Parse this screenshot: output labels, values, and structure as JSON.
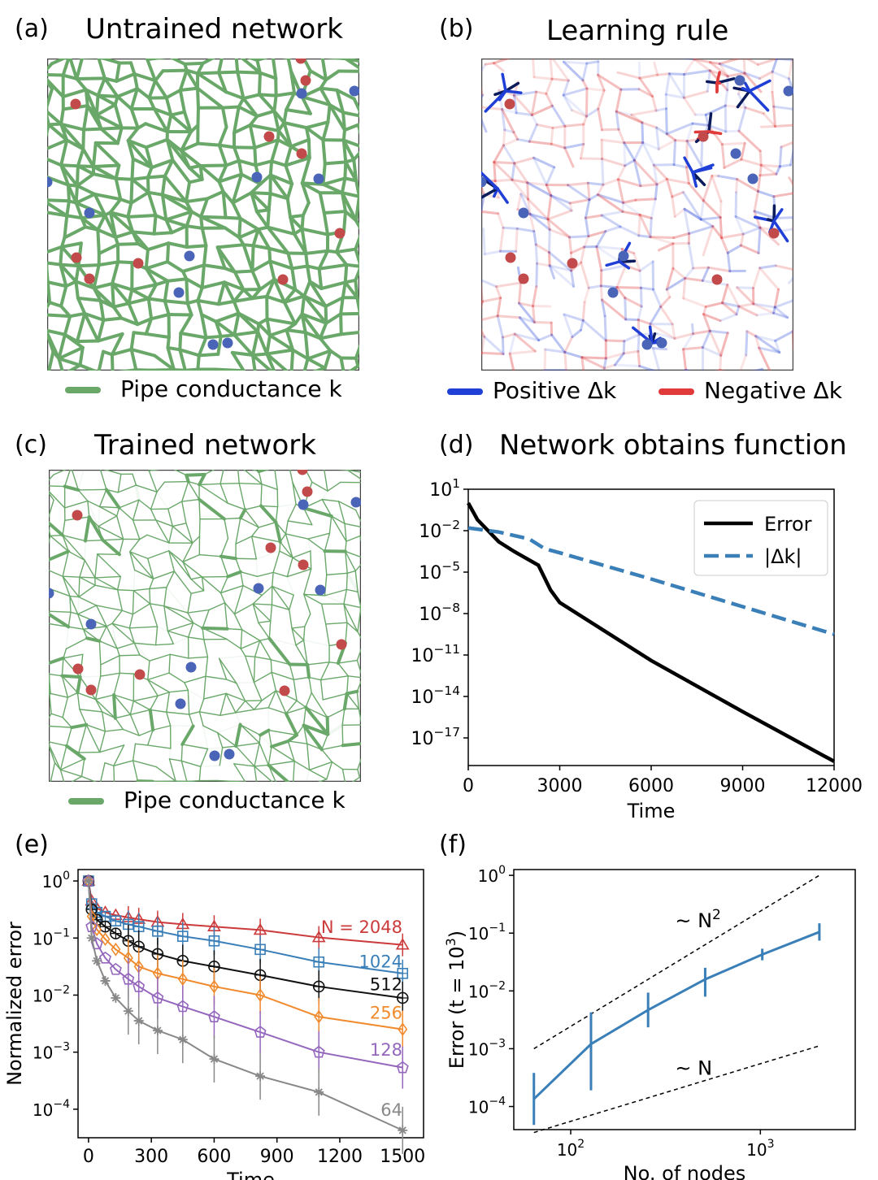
{
  "panels": {
    "a": {
      "label": "(a)",
      "title": "Untrained network",
      "legend": "Pipe conductance k"
    },
    "b": {
      "label": "(b)",
      "title": "Learning rule",
      "legend_pos": "Positive Δk",
      "legend_neg": "Negative Δk"
    },
    "c": {
      "label": "(c)",
      "title": "Trained network",
      "legend": "Pipe conductance k"
    },
    "d": {
      "label": "(d)",
      "title": "Network obtains function"
    },
    "e": {
      "label": "(e)"
    },
    "f": {
      "label": "(f)"
    }
  },
  "colors": {
    "network_green": "#6aa86a",
    "node_red": "#c24a4a",
    "node_blue": "#4a64b8",
    "pos": "#1f3fd6",
    "neg": "#e03a3a",
    "steelblue": "#3a7fb8"
  },
  "chart_data": [
    {
      "id": "d",
      "type": "line",
      "xlabel": "Time",
      "xticks": [
        "0",
        "3000",
        "6000",
        "9000",
        "12000"
      ],
      "yticks": [
        "10^1",
        "10^-2",
        "10^-5",
        "10^-8",
        "10^-11",
        "10^-14",
        "10^-17"
      ],
      "xlim": [
        0,
        12000
      ],
      "ylim_log10": [
        -19,
        1
      ],
      "yscale": "log",
      "legend_position": "top-right",
      "series": [
        {
          "name": "Error",
          "color": "#000000",
          "style": "solid",
          "x": [
            0,
            300,
            1000,
            1500,
            2300,
            2700,
            3000,
            6000,
            9000,
            12000
          ],
          "log10_y": [
            0.0,
            -1.2,
            -2.8,
            -3.5,
            -4.5,
            -6.3,
            -7.2,
            -11.4,
            -15.1,
            -18.7
          ]
        },
        {
          "name": "|Δk|",
          "color": "#3a7fb8",
          "style": "dashed",
          "x": [
            0,
            1000,
            2000,
            2500,
            3000,
            6000,
            9000,
            12000
          ],
          "log10_y": [
            -1.8,
            -2.1,
            -2.6,
            -3.3,
            -3.6,
            -5.5,
            -7.5,
            -9.5
          ]
        }
      ]
    },
    {
      "id": "e",
      "type": "line",
      "xlabel": "Time",
      "ylabel": "Normalized error",
      "xticks": [
        "0",
        "300",
        "600",
        "900",
        "1200",
        "1500"
      ],
      "yticks": [
        "10^0",
        "10^-1",
        "10^-2",
        "10^-3",
        "10^-4"
      ],
      "xlim": [
        -50,
        1600
      ],
      "ylim_log10": [
        -4.5,
        0.2
      ],
      "yscale": "log",
      "x": [
        0,
        15,
        40,
        80,
        130,
        190,
        240,
        330,
        450,
        600,
        820,
        1100,
        1500
      ],
      "series": [
        {
          "name": "N = 2048",
          "label": "N = 2048",
          "color": "#cc3b3b",
          "marker": "triangle",
          "log10_y": [
            0,
            -0.35,
            -0.48,
            -0.55,
            -0.6,
            -0.64,
            -0.67,
            -0.72,
            -0.76,
            -0.8,
            -0.86,
            -0.99,
            -1.12
          ]
        },
        {
          "name": "1024",
          "label": "1024",
          "color": "#3a7fb8",
          "marker": "boxplus",
          "log10_y": [
            0,
            -0.4,
            -0.55,
            -0.62,
            -0.7,
            -0.76,
            -0.8,
            -0.88,
            -0.97,
            -1.05,
            -1.2,
            -1.42,
            -1.62
          ]
        },
        {
          "name": "512",
          "label": "512",
          "color": "#111111",
          "marker": "circleplus",
          "log10_y": [
            0,
            -0.5,
            -0.68,
            -0.8,
            -0.92,
            -1.05,
            -1.15,
            -1.28,
            -1.4,
            -1.5,
            -1.65,
            -1.85,
            -2.05
          ]
        },
        {
          "name": "256",
          "label": "256",
          "color": "#f08a2c",
          "marker": "diamond",
          "log10_y": [
            0,
            -0.62,
            -0.85,
            -1.02,
            -1.2,
            -1.35,
            -1.5,
            -1.62,
            -1.72,
            -1.85,
            -2.0,
            -2.38,
            -2.6
          ]
        },
        {
          "name": "128",
          "label": "128",
          "color": "#9467bd",
          "marker": "pentagon",
          "log10_y": [
            0,
            -0.8,
            -1.1,
            -1.35,
            -1.55,
            -1.72,
            -1.85,
            -2.05,
            -2.2,
            -2.38,
            -2.65,
            -3.0,
            -3.27
          ]
        },
        {
          "name": "64",
          "label": "64",
          "color": "#888888",
          "marker": "star",
          "log10_y": [
            0,
            -1.0,
            -1.4,
            -1.75,
            -2.05,
            -2.28,
            -2.45,
            -2.62,
            -2.78,
            -3.12,
            -3.42,
            -3.7,
            -4.37
          ]
        }
      ]
    },
    {
      "id": "f",
      "type": "line",
      "xlabel": "No. of nodes",
      "ylabel": "Error (t = 10^3)",
      "xscale": "log",
      "yscale": "log",
      "xticks": [
        "10^2",
        "10^3"
      ],
      "yticks": [
        "10^0",
        "10^-1",
        "10^-2",
        "10^-3",
        "10^-4"
      ],
      "xlim_log10": [
        1.7,
        3.5
      ],
      "ylim_log10": [
        -4.4,
        0.1
      ],
      "series": [
        {
          "name": "error",
          "color": "#3a7fb8",
          "log10_x": [
            1.806,
            2.107,
            2.408,
            2.709,
            3.01,
            3.311
          ],
          "log10_y": [
            -3.87,
            -2.92,
            -2.33,
            -1.8,
            -1.37,
            -0.98
          ],
          "err_lo": [
            0.45,
            0.8,
            0.3,
            0.3,
            0.1,
            0.15
          ],
          "err_hi": [
            0.45,
            0.55,
            0.3,
            0.2,
            0.1,
            0.15
          ]
        }
      ],
      "guides": [
        {
          "label": "~ N^2",
          "log10_x": [
            1.806,
            3.311
          ],
          "log10_y": [
            -3.0,
            0.0
          ]
        },
        {
          "label": "~ N",
          "log10_x": [
            1.806,
            3.311
          ],
          "log10_y": [
            -4.45,
            -2.95
          ]
        }
      ]
    }
  ]
}
